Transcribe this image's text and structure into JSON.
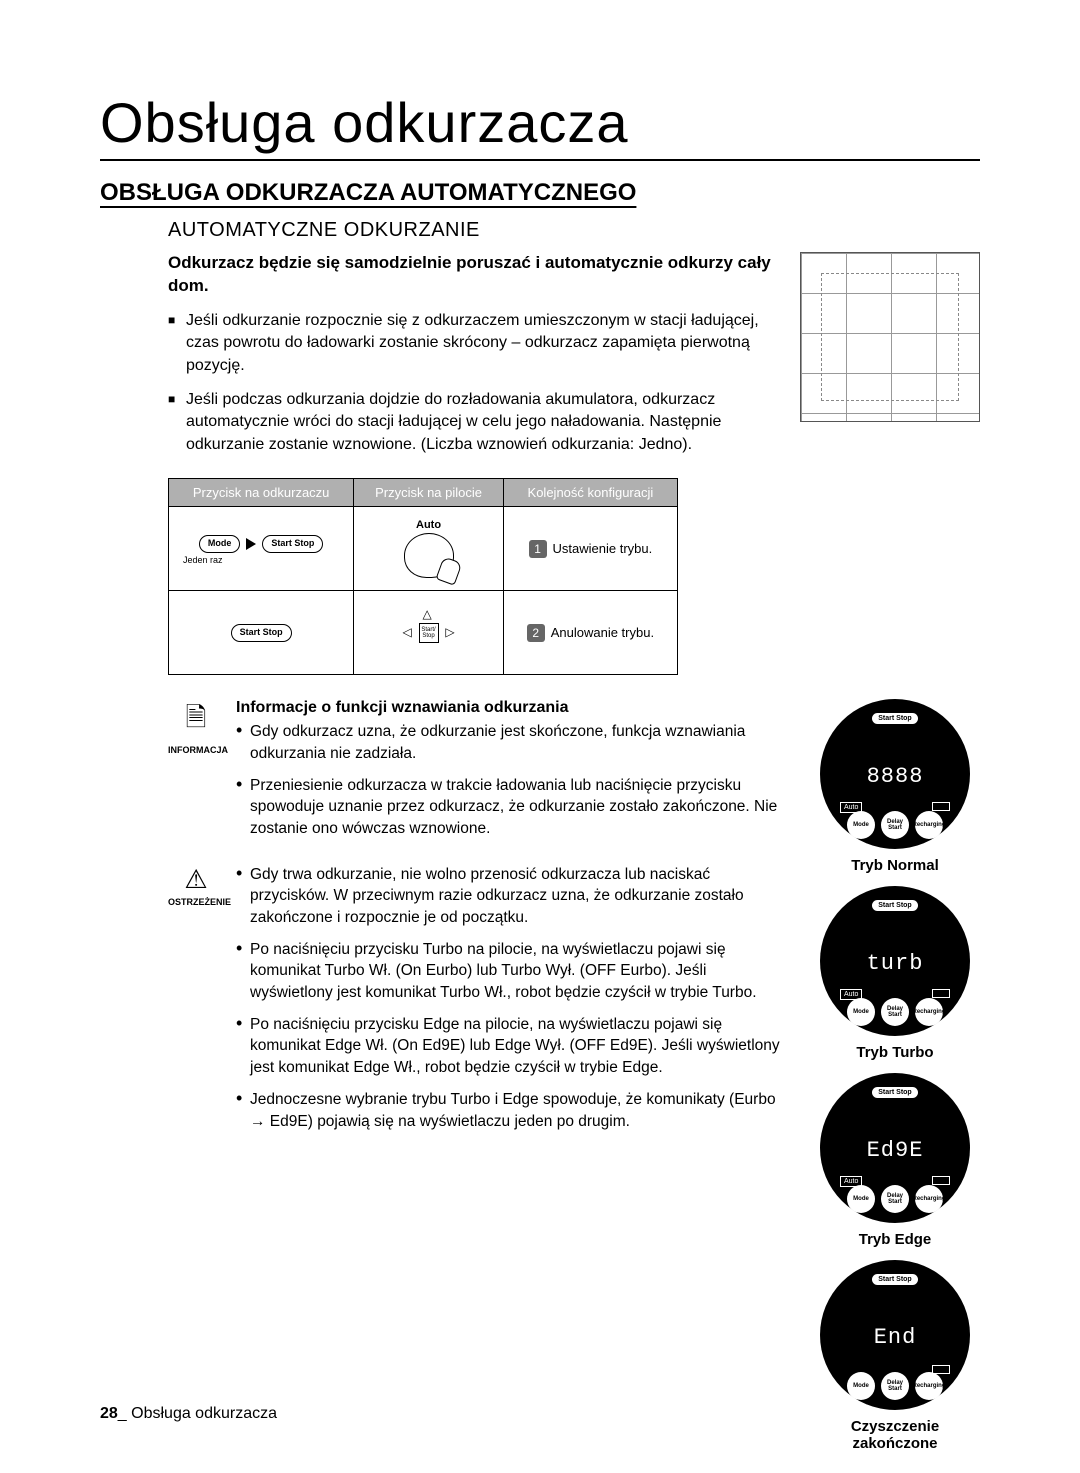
{
  "page_title": "Obsługa odkurzacza",
  "section_title": "OBSŁUGA ODKURZACZA AUTOMATYCZNEGO",
  "subsection_title": "AUTOMATYCZNE ODKURZANIE",
  "intro_bold": "Odkurzacz będzie się samodzielnie poruszać i automatycznie odkurzy cały dom.",
  "bullets": [
    "Jeśli odkurzanie rozpocznie się z odkurzaczem umieszczonym w stacji ładującej, czas powrotu do ładowarki zostanie skrócony – odkurzacz zapamięta pierwotną pozycję.",
    "Jeśli podczas odkurzania dojdzie do rozładowania akumulatora, odkurzacz automatycznie wróci do stacji ładującej w celu jego naładowania. Następnie odkurzanie zostanie wznowione. (Liczba wznowień odkurzania: Jedno)."
  ],
  "table": {
    "headers": [
      "Przycisk na odkurzaczu",
      "Przycisk na pilocie",
      "Kolejność konfiguracji"
    ],
    "step1_label": "Ustawienie trybu.",
    "step2_label": "Anulowanie trybu.",
    "vac_mode": "Mode",
    "vac_start": "Start Stop",
    "vac_once": "Jeden raz",
    "remote_auto": "Auto",
    "remote_startstop": "Start/ Stop"
  },
  "info_label": "INFORMACJA",
  "warning_label": "OSTRZEŻENIE",
  "info_title": "Informacje o funkcji wznawiania odkurzania",
  "info_items": [
    "Gdy odkurzacz uzna, że odkurzanie jest skończone, funkcja wznawiania odkurzania nie zadziała.",
    "Przeniesienie odkurzacza w trakcie ładowania lub naciśnięcie przycisku spowoduje uznanie przez odkurzacz, że odkurzanie zostało zakończone. Nie zostanie ono wówczas wznowione."
  ],
  "warning_items": [
    "Gdy trwa odkurzanie, nie wolno przenosić odkurzacza lub naciskać przycisków. W przeciwnym razie odkurzacz uzna, że odkurzanie zostało zakończone i rozpocznie je od początku.",
    "Po naciśnięciu przycisku Turbo na pilocie, na wyświetlaczu pojawi się komunikat Turbo Wł. (On Eurbo) lub Turbo Wył. (OFF Eurbo). Jeśli wyświetlony jest komunikat Turbo Wł., robot będzie czyścił w trybie Turbo.",
    "Po naciśnięciu przycisku Edge na pilocie, na wyświetlaczu pojawi się komunikat Edge Wł. (On Ed9E) lub Edge Wył. (OFF Ed9E). Jeśli wyświetlony jest komunikat Edge Wł., robot będzie czyścił w trybie Edge.",
    "Jednoczesne wybranie trybu Turbo i Edge spowoduje, że komunikaty (Eurbo → Ed9E) pojawią się na wyświetlaczu jeden po drugim."
  ],
  "displays": [
    {
      "seg": "8888",
      "label": "Tryb Normal"
    },
    {
      "seg": "turb",
      "label": "Tryb Turbo"
    },
    {
      "seg": "Ed9E",
      "label": "Tryb Edge"
    },
    {
      "seg": "End",
      "label": "Czyszczenie zakończone",
      "no_auto": true
    }
  ],
  "rd_buttons": [
    "Mode",
    "Delay Start",
    "Recharging"
  ],
  "rd_startstop": "Start Stop",
  "rd_auto": "Auto",
  "footer_page": "28",
  "footer_text": "Obsługa odkurzacza"
}
